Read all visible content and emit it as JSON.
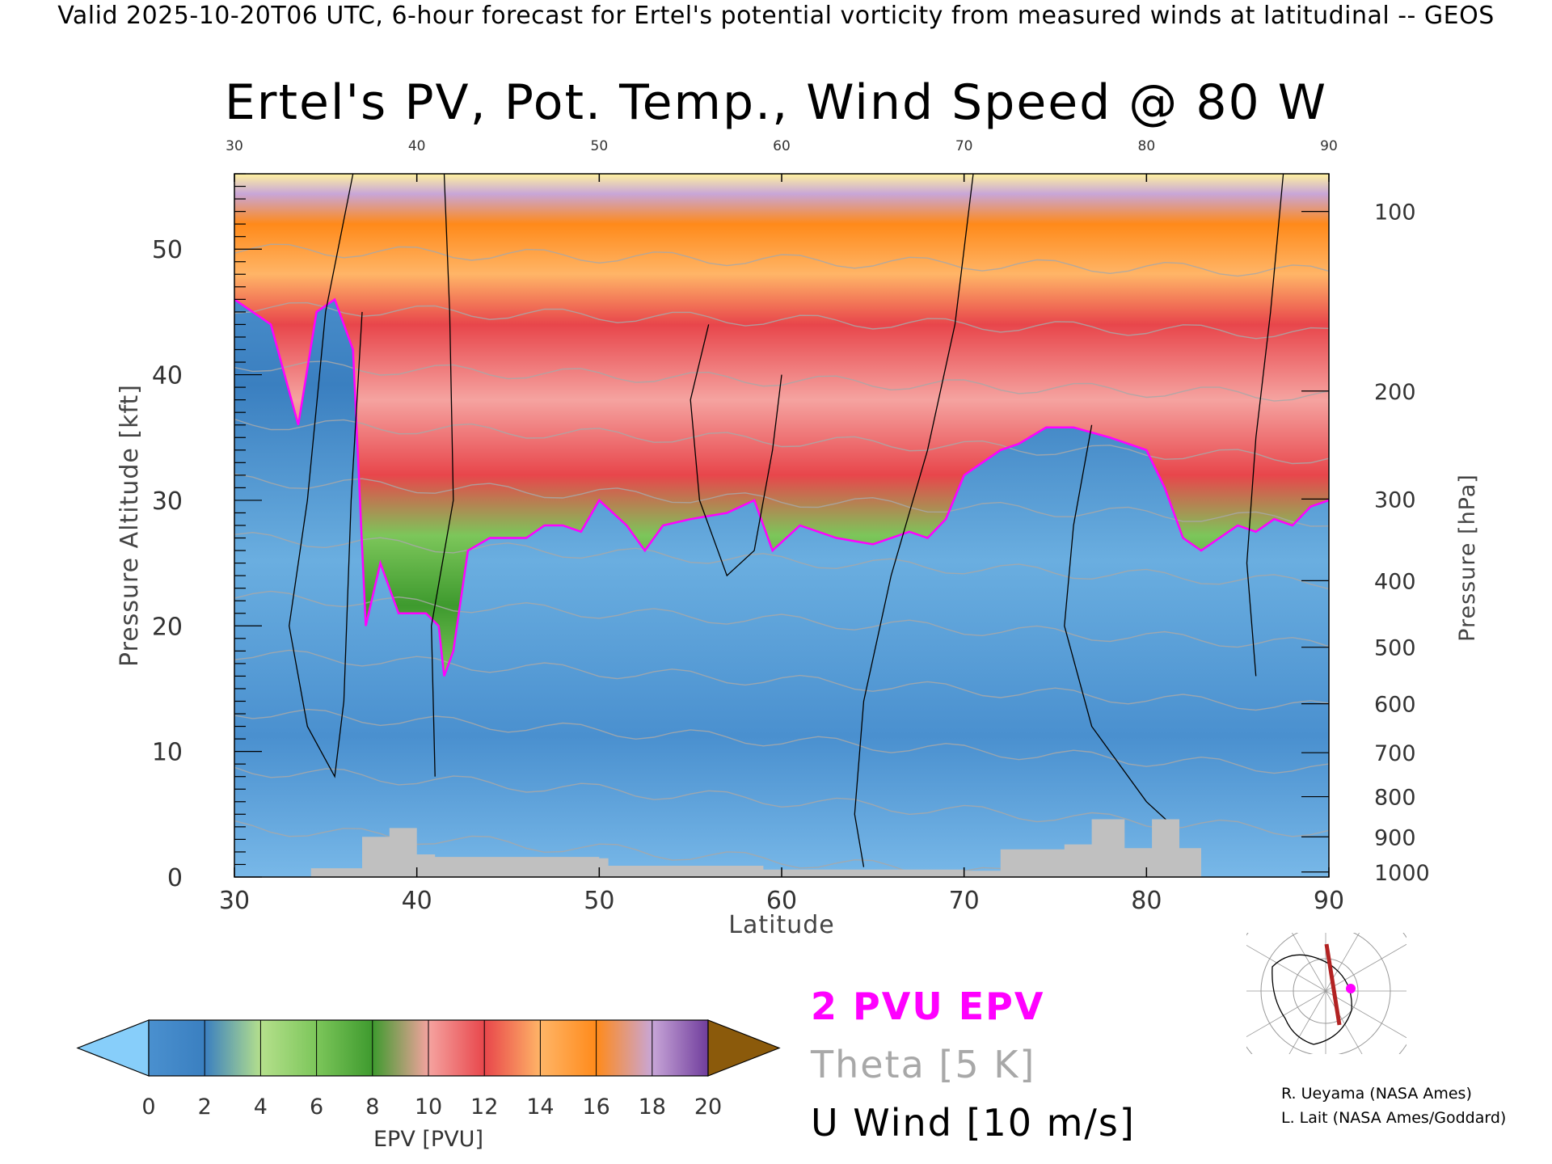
{
  "header": "Valid 2025-10-20T06 UTC, 6-hour forecast for Ertel's potential vorticity from measured winds at latitudinal -- GEOS",
  "title": "Ertel's PV, Pot. Temp., Wind Speed @ 80 W",
  "colors": {
    "pv_contour": "#ff00ff",
    "theta": "#a8a8a8",
    "wind": "#000000",
    "terrain": "#c0c0c0"
  },
  "chart_data": {
    "type": "heatmap",
    "xlabel": "Latitude",
    "ylabel": "Pressure Altitude [kft]",
    "ylabel_right": "Pressure [hPa]",
    "xlim": [
      30,
      90
    ],
    "ylim": [
      0,
      56
    ],
    "x_ticks": [
      30,
      40,
      50,
      60,
      70,
      80,
      90
    ],
    "y_ticks": [
      0,
      10,
      20,
      30,
      40,
      50
    ],
    "pressure_ticks": [
      100,
      200,
      300,
      400,
      500,
      600,
      700,
      800,
      900,
      1000
    ],
    "pressure_tick_kft": [
      53.0,
      38.7,
      30.1,
      23.6,
      18.3,
      13.8,
      9.9,
      6.4,
      3.2,
      0.4
    ],
    "colorbar": {
      "label": "EPV [PVU]",
      "ticks": [
        0,
        2,
        4,
        6,
        8,
        10,
        12,
        14,
        16,
        18,
        20
      ],
      "colors": [
        "#4a90cf",
        "#3a7fc0",
        "#b5e08c",
        "#7cc65a",
        "#3e9a2e",
        "#f5a3a0",
        "#e8464b",
        "#ffb567",
        "#ff8a1a",
        "#c8a6d8",
        "#6f3c9c",
        "#fff2a0"
      ],
      "under_color": "#87cefa",
      "over_color": "#8b5a0b"
    },
    "tropopause_2pvu": [
      [
        30,
        46
      ],
      [
        32,
        44
      ],
      [
        33.5,
        36
      ],
      [
        34.5,
        45
      ],
      [
        35.5,
        46
      ],
      [
        36.5,
        42
      ],
      [
        37.2,
        20
      ],
      [
        38,
        25
      ],
      [
        39,
        21
      ],
      [
        40.5,
        21
      ],
      [
        41.2,
        20
      ],
      [
        41.5,
        16
      ],
      [
        42,
        18
      ],
      [
        42.8,
        26
      ],
      [
        44,
        27
      ],
      [
        45,
        27
      ],
      [
        46,
        27
      ],
      [
        47,
        28
      ],
      [
        48,
        28
      ],
      [
        49,
        27.5
      ],
      [
        50,
        30
      ],
      [
        51.5,
        28
      ],
      [
        52.5,
        26
      ],
      [
        53.5,
        28
      ],
      [
        55,
        28.5
      ],
      [
        57,
        29
      ],
      [
        58.5,
        30
      ],
      [
        59.5,
        26
      ],
      [
        61,
        28
      ],
      [
        63,
        27
      ],
      [
        65,
        26.5
      ],
      [
        67,
        27.5
      ],
      [
        68,
        27
      ],
      [
        69,
        28.5
      ],
      [
        70,
        32
      ],
      [
        71,
        33
      ],
      [
        72,
        34
      ],
      [
        73,
        34.5
      ],
      [
        74.5,
        35.8
      ],
      [
        76,
        35.8
      ],
      [
        78,
        35
      ],
      [
        80,
        34
      ],
      [
        81,
        31
      ],
      [
        82,
        27
      ],
      [
        83,
        26
      ],
      [
        84,
        27
      ],
      [
        85,
        28
      ],
      [
        86,
        27.5
      ],
      [
        87,
        28.5
      ],
      [
        88,
        28
      ],
      [
        89,
        29.5
      ],
      [
        90,
        30
      ]
    ],
    "theta_levels_k": [
      300,
      310,
      320,
      330,
      340,
      350,
      360,
      370,
      380,
      390,
      400
    ],
    "wind_levels_ms": [
      0,
      10,
      20,
      30,
      40,
      50
    ],
    "terrain_kft": [
      [
        30,
        0
      ],
      [
        34.2,
        0
      ],
      [
        34.2,
        0.7
      ],
      [
        37,
        0.7
      ],
      [
        37,
        3.2
      ],
      [
        38.5,
        3.2
      ],
      [
        38.5,
        3.9
      ],
      [
        40,
        3.9
      ],
      [
        40,
        1.8
      ],
      [
        41,
        1.8
      ],
      [
        41,
        1.6
      ],
      [
        50,
        1.6
      ],
      [
        50,
        1.5
      ],
      [
        50.5,
        1.5
      ],
      [
        50.5,
        0.9
      ],
      [
        59,
        0.9
      ],
      [
        59,
        0.6
      ],
      [
        70,
        0.6
      ],
      [
        70,
        0.5
      ],
      [
        72,
        0.5
      ],
      [
        72,
        2.2
      ],
      [
        75.5,
        2.2
      ],
      [
        75.5,
        2.6
      ],
      [
        77,
        2.6
      ],
      [
        77,
        4.6
      ],
      [
        78.8,
        4.6
      ],
      [
        78.8,
        2.3
      ],
      [
        80.3,
        2.3
      ],
      [
        80.3,
        4.6
      ],
      [
        81.8,
        4.6
      ],
      [
        81.8,
        2.3
      ],
      [
        83,
        2.3
      ],
      [
        83,
        0
      ],
      [
        90,
        0
      ]
    ]
  },
  "pv_legend": "2 PVU EPV",
  "theta_legend": "Theta [5 K]",
  "wind_legend": "U Wind [10 m/s]",
  "credits": [
    "R. Ueyama (NASA Ames)",
    "L. Lait (NASA Ames/Goddard)"
  ]
}
